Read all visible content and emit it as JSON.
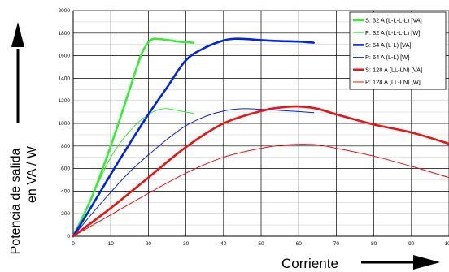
{
  "chart_data": {
    "type": "line",
    "xlabel": "Corriente",
    "ylabel_line1": "Potencia de salida",
    "ylabel_line2": "en VA / W",
    "xlim": [
      0,
      100
    ],
    "ylim": [
      0,
      2000
    ],
    "x_ticks": [
      "0",
      "10",
      "20",
      "30",
      "40",
      "50",
      "60",
      "70",
      "80",
      "90",
      "100"
    ],
    "y_ticks": [
      "0",
      "200",
      "400",
      "600",
      "800",
      "1000",
      "1200",
      "1400",
      "1600",
      "1800",
      "2000"
    ],
    "grid": true,
    "legend_position": "top-right",
    "series": [
      {
        "name": "S: 32 A (L-L-L-L) [VA]",
        "color": "#33ee33",
        "width": 2.6,
        "points": [
          [
            0,
            0
          ],
          [
            5,
            350
          ],
          [
            10,
            800
          ],
          [
            15,
            1300
          ],
          [
            18,
            1600
          ],
          [
            20,
            1720
          ],
          [
            21,
            1745
          ],
          [
            22,
            1750
          ],
          [
            25,
            1740
          ],
          [
            28,
            1725
          ],
          [
            32,
            1715
          ]
        ]
      },
      {
        "name": "P: 32 A (L-L-L-L) [W]",
        "color": "#33ee33",
        "width": 1.0,
        "points": [
          [
            0,
            0
          ],
          [
            5,
            350
          ],
          [
            10,
            700
          ],
          [
            15,
            930
          ],
          [
            20,
            1080
          ],
          [
            24,
            1130
          ],
          [
            27,
            1120
          ],
          [
            30,
            1100
          ],
          [
            32,
            1090
          ]
        ]
      },
      {
        "name": "S: 64 A (L-L) [VA]",
        "color": "#0022ee",
        "width": 2.6,
        "points": [
          [
            0,
            0
          ],
          [
            5,
            270
          ],
          [
            10,
            550
          ],
          [
            15,
            820
          ],
          [
            20,
            1080
          ],
          [
            25,
            1320
          ],
          [
            30,
            1560
          ],
          [
            35,
            1670
          ],
          [
            40,
            1735
          ],
          [
            43,
            1750
          ],
          [
            46,
            1748
          ],
          [
            50,
            1738
          ],
          [
            55,
            1730
          ],
          [
            60,
            1725
          ],
          [
            64,
            1715
          ]
        ]
      },
      {
        "name": "P: 64 A (L-L) [W]",
        "color": "#0022ee",
        "width": 1.0,
        "points": [
          [
            0,
            0
          ],
          [
            5,
            200
          ],
          [
            10,
            390
          ],
          [
            15,
            570
          ],
          [
            20,
            720
          ],
          [
            25,
            860
          ],
          [
            30,
            980
          ],
          [
            35,
            1060
          ],
          [
            40,
            1110
          ],
          [
            45,
            1130
          ],
          [
            50,
            1125
          ],
          [
            55,
            1115
          ],
          [
            60,
            1105
          ],
          [
            64,
            1095
          ]
        ]
      },
      {
        "name": "S: 128 A (LL-LN) [VA]",
        "color": "#ee1111",
        "width": 2.6,
        "points": [
          [
            0,
            0
          ],
          [
            10,
            250
          ],
          [
            20,
            520
          ],
          [
            30,
            790
          ],
          [
            40,
            1000
          ],
          [
            50,
            1110
          ],
          [
            55,
            1140
          ],
          [
            60,
            1150
          ],
          [
            65,
            1130
          ],
          [
            70,
            1080
          ],
          [
            80,
            990
          ],
          [
            90,
            920
          ],
          [
            100,
            820
          ]
        ]
      },
      {
        "name": "P: 128 A (LL-LN) [W]",
        "color": "#ee1111",
        "width": 1.0,
        "points": [
          [
            0,
            0
          ],
          [
            10,
            190
          ],
          [
            20,
            380
          ],
          [
            30,
            560
          ],
          [
            40,
            700
          ],
          [
            50,
            780
          ],
          [
            55,
            805
          ],
          [
            60,
            815
          ],
          [
            65,
            810
          ],
          [
            70,
            780
          ],
          [
            80,
            710
          ],
          [
            90,
            620
          ],
          [
            100,
            520
          ]
        ]
      }
    ]
  }
}
